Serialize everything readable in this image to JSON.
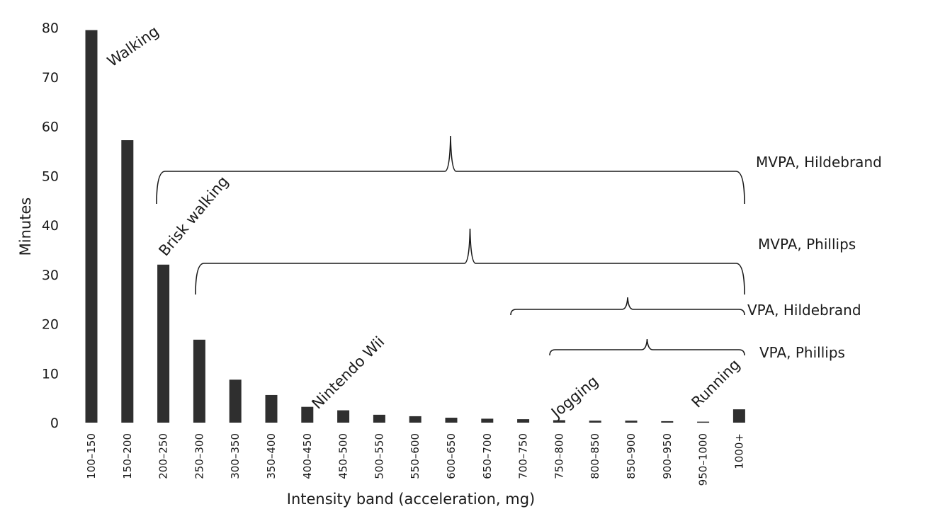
{
  "chart_data": {
    "type": "bar",
    "title": "",
    "xlabel": "Intensity band (acceleration, mg)",
    "ylabel": "Minutes",
    "ylim": [
      0,
      80
    ],
    "yticks": [
      0,
      10,
      20,
      30,
      40,
      50,
      60,
      70,
      80
    ],
    "grid": false,
    "categories": [
      "100–150",
      "150–200",
      "200–250",
      "250–300",
      "300–350",
      "350–400",
      "400–450",
      "450–500",
      "500–550",
      "550–600",
      "600–650",
      "650–700",
      "700–750",
      "750–800",
      "800–850",
      "850–900",
      "900–950",
      "950–1000",
      "1000+"
    ],
    "values": [
      79.5,
      57.2,
      32.0,
      16.8,
      8.7,
      5.6,
      3.2,
      2.5,
      1.6,
      1.3,
      1.0,
      0.8,
      0.7,
      0.5,
      0.4,
      0.4,
      0.3,
      0.2,
      2.7
    ],
    "annotations": [
      {
        "text": "Walking",
        "category": "100–150"
      },
      {
        "text": "Brisk walking",
        "category": "200–250"
      },
      {
        "text": "Nintendo Wii",
        "category": "400–450"
      },
      {
        "text": "Jogging",
        "category": "750–800"
      },
      {
        "text": "Running",
        "category": "1000+"
      }
    ],
    "ranges": [
      {
        "label": "MVPA, Hildebrand",
        "from": "200–250",
        "to": "1000+"
      },
      {
        "label": "MVPA, Phillips",
        "from": "250–300",
        "to": "1000+"
      },
      {
        "label": "VPA, Hildebrand",
        "from": "700–750",
        "to": "1000+"
      },
      {
        "label": "VPA, Phillips",
        "from": "750–800",
        "to": "1000+"
      }
    ]
  }
}
